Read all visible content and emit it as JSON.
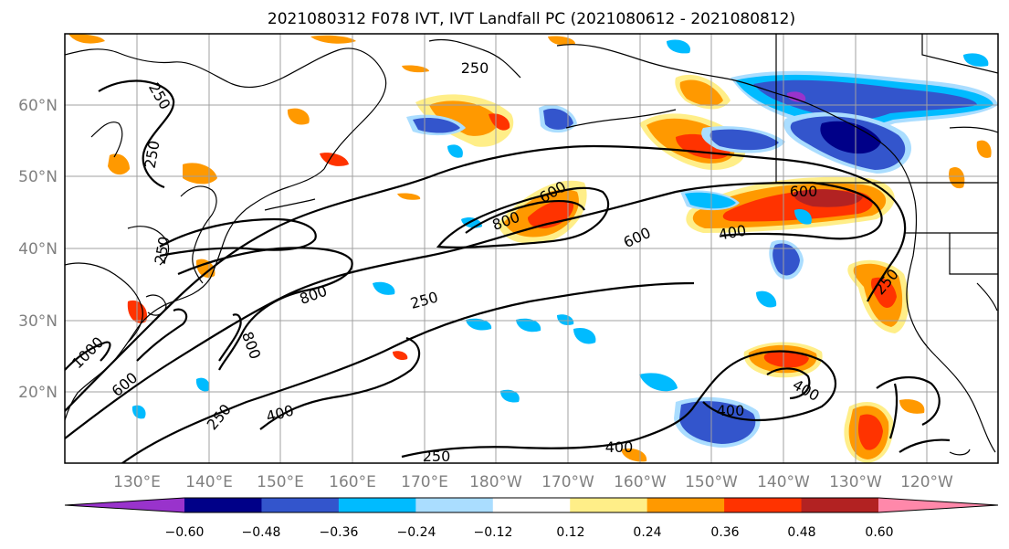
{
  "title": "2021080312 F078 IVT, IVT Landfall PC (2021080612 - 2021080812)",
  "map": {
    "lon_labels": [
      "130°E",
      "140°E",
      "150°E",
      "160°E",
      "170°E",
      "180°W",
      "170°W",
      "160°W",
      "150°W",
      "140°W",
      "130°W",
      "120°W"
    ],
    "lat_labels": [
      "60°N",
      "50°N",
      "40°N",
      "30°N",
      "20°N"
    ],
    "gridlines": true,
    "ivt_contour_labels": [
      "250",
      "250",
      "250",
      "250",
      "250",
      "250",
      "250",
      "400",
      "400",
      "400",
      "400",
      "400",
      "600",
      "600",
      "600",
      "600",
      "800",
      "800",
      "800",
      "1000"
    ]
  },
  "colorbar": {
    "ticks": [
      "−0.60",
      "−0.48",
      "−0.36",
      "−0.24",
      "−0.12",
      "0.12",
      "0.24",
      "0.36",
      "0.48",
      "0.60"
    ],
    "colors": [
      "#9933cc",
      "#000088",
      "#3355cc",
      "#00bbff",
      "#aaddff",
      "#ffffff",
      "#ffee88",
      "#ff9900",
      "#ff3300",
      "#b22222",
      "#ff88aa"
    ]
  }
}
